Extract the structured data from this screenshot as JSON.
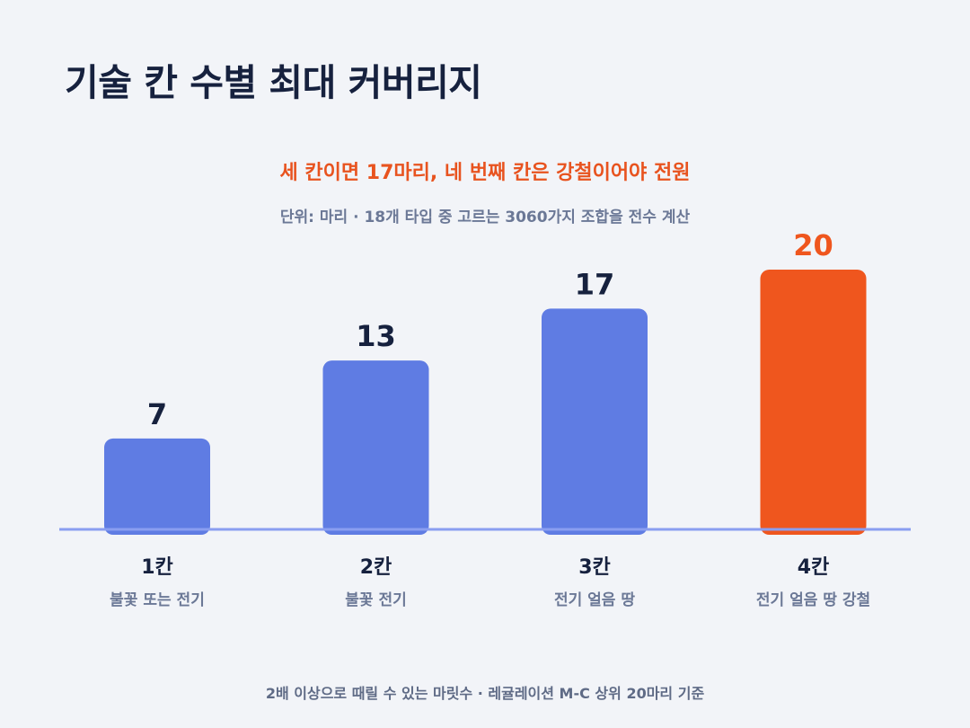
{
  "title": "기술 칸 수별 최대 커버리지",
  "subtitle": "세 칸이면 17마리, 네 번째 칸은 강철이어야 전원",
  "unit_note": "단위: 마리 · 18개 타입 중 고르는 3060가지 조합을 전수 계산",
  "footnote": "2배 이상으로 때릴 수 있는 마릿수 · 레귤레이션 M-C 상위 20마리 기준",
  "colors": {
    "bar": "#5f7ce3",
    "highlight": "#ef561e",
    "baseline": "#8a9ef0",
    "value_label": "#16213e",
    "category_label": "#16213e",
    "sub_label": "#6b7896"
  },
  "chart_data": {
    "type": "bar",
    "categories": [
      "1칸",
      "2칸",
      "3칸",
      "4칸"
    ],
    "sublabels": [
      "불꽃 또는 전기",
      "불꽃 전기",
      "전기 얼음 땅",
      "전기 얼음 땅 강철"
    ],
    "values": [
      7,
      13,
      17,
      20
    ],
    "highlight_index": 3,
    "ylim": [
      0,
      20
    ],
    "grid": false,
    "legend": "none",
    "xlabel": "",
    "ylabel": ""
  }
}
